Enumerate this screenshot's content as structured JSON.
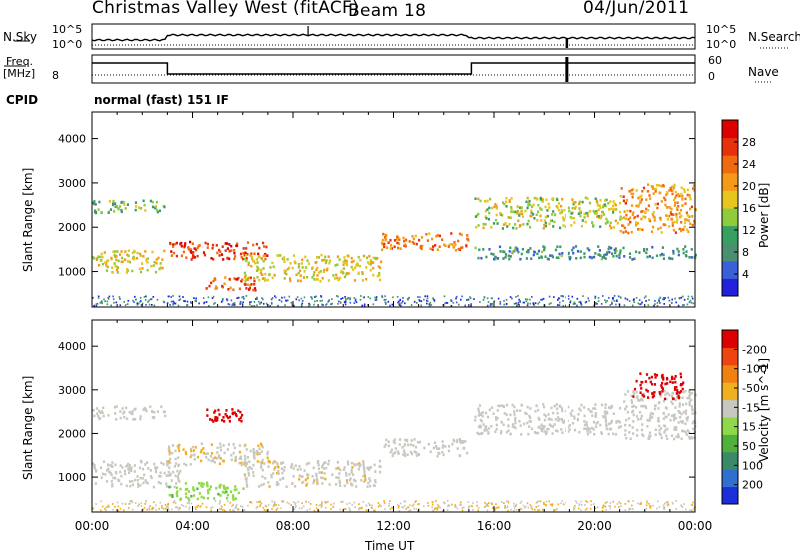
{
  "header": {
    "station": "Christmas Valley West (fitACF)",
    "beam": "Beam 18",
    "date": "04/Jun/2011"
  },
  "top_panels": {
    "nsky_label": "N.Sky",
    "nsearch_label": "N.Search",
    "noise_ticks_left": [
      "10^5",
      "10^0"
    ],
    "noise_ticks_right": [
      "10^5",
      "10^0"
    ],
    "freq_label": "Freq.",
    "freq_unit": "[MHz]",
    "freq_tick": "8",
    "nave_label": "Nave",
    "nave_ticks": [
      "60",
      "0"
    ],
    "cpid_label": "CPID",
    "cpid_value": "normal (fast) 151 IF"
  },
  "colors": {
    "power_scale": [
      "#2222dd",
      "#3b5fd8",
      "#4a8f6f",
      "#37a060",
      "#8fcc3a",
      "#e8c51e",
      "#f59a16",
      "#f06a10",
      "#e8300c",
      "#dd0000"
    ],
    "velocity_scale": [
      "#1a2fd8",
      "#2f6fd0",
      "#3a8a6a",
      "#4fb03a",
      "#8ed84a",
      "#c8c8c0",
      "#f0b020",
      "#f08010",
      "#ee4410",
      "#dd0000"
    ],
    "ground_scatter": "#c8c8c0"
  },
  "chart_data": [
    {
      "type": "heatmap",
      "panel": "power",
      "ylabel": "Slant Range [km]",
      "yticks": [
        "1000",
        "2000",
        "3000",
        "4000"
      ],
      "ylim": [
        200,
        4600
      ],
      "colorbar_label": "Power [dB]",
      "colorbar_ticks": [
        "4",
        "8",
        "12",
        "16",
        "20",
        "24",
        "28"
      ],
      "colorbar_range": [
        0,
        32
      ],
      "xlim_hours": [
        0,
        24
      ],
      "echo_bands": [
        {
          "t0": 0.0,
          "t1": 2.9,
          "r0": 2350,
          "r1": 2650,
          "level": 12
        },
        {
          "t0": 0.0,
          "t1": 2.9,
          "r0": 1000,
          "r1": 1500,
          "level": 18
        },
        {
          "t0": 3.0,
          "t1": 7.0,
          "r0": 1300,
          "r1": 1700,
          "level": 28
        },
        {
          "t0": 4.5,
          "t1": 6.5,
          "r0": 600,
          "r1": 900,
          "level": 26
        },
        {
          "t0": 6.0,
          "t1": 11.5,
          "r0": 800,
          "r1": 1400,
          "level": 18
        },
        {
          "t0": 11.5,
          "t1": 15.0,
          "r0": 1500,
          "r1": 1900,
          "level": 24
        },
        {
          "t0": 15.2,
          "t1": 21.0,
          "r0": 2000,
          "r1": 2700,
          "level": 16
        },
        {
          "t0": 21.0,
          "t1": 24.0,
          "r0": 1900,
          "r1": 3000,
          "level": 22
        },
        {
          "t0": 15.2,
          "t1": 24.0,
          "r0": 1300,
          "r1": 1600,
          "level": 8
        }
      ]
    },
    {
      "type": "heatmap",
      "panel": "velocity",
      "ylabel": "Slant Range [km]",
      "yticks": [
        "1000",
        "2000",
        "3000",
        "4000"
      ],
      "ylim": [
        200,
        4600
      ],
      "colorbar_label": "Velocity [m s^-1]",
      "colorbar_ticks": [
        "200",
        "100",
        "50",
        "15",
        "-15",
        "-50",
        "-100",
        "-200"
      ],
      "xlabel": "Time UT",
      "xticks": [
        "00:00",
        "04:00",
        "08:00",
        "12:00",
        "16:00",
        "20:00",
        "00:00"
      ],
      "xlim_hours": [
        0,
        24
      ],
      "echo_bands": [
        {
          "t0": 0.0,
          "t1": 2.9,
          "r0": 2350,
          "r1": 2650,
          "vel": 0
        },
        {
          "t0": 0.0,
          "t1": 3.5,
          "r0": 800,
          "r1": 1400,
          "vel": 0
        },
        {
          "t0": 3.0,
          "t1": 7.0,
          "r0": 1300,
          "r1": 1800,
          "vel": -40
        },
        {
          "t0": 3.0,
          "t1": 6.0,
          "r0": 500,
          "r1": 900,
          "vel": 30
        },
        {
          "t0": 6.0,
          "t1": 11.5,
          "r0": 800,
          "r1": 1400,
          "vel": -30
        },
        {
          "t0": 4.5,
          "t1": 6.0,
          "r0": 2300,
          "r1": 2600,
          "vel": -200
        },
        {
          "t0": 11.5,
          "t1": 15.0,
          "r0": 1500,
          "r1": 1900,
          "vel": 0
        },
        {
          "t0": 15.2,
          "t1": 21.0,
          "r0": 2000,
          "r1": 2700,
          "vel": 0
        },
        {
          "t0": 21.0,
          "t1": 24.0,
          "r0": 1900,
          "r1": 3000,
          "vel": 0
        },
        {
          "t0": 21.5,
          "t1": 23.5,
          "r0": 2800,
          "r1": 3400,
          "vel": -200
        }
      ]
    }
  ]
}
